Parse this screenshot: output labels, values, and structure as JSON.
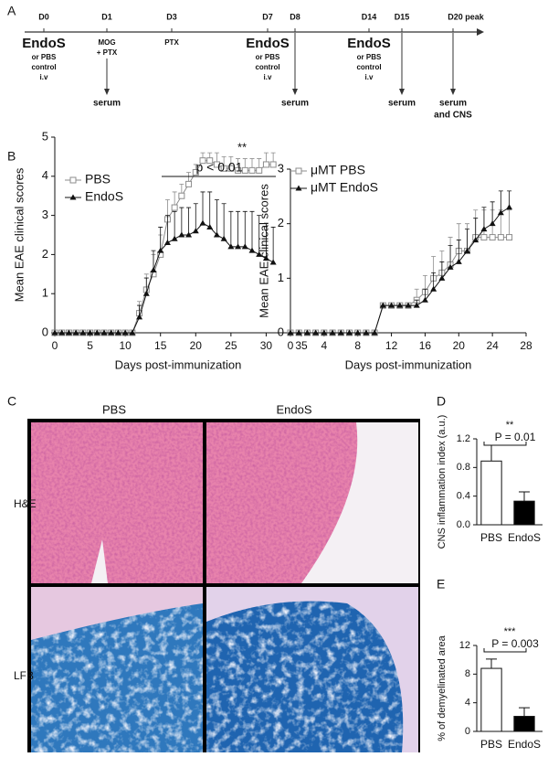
{
  "panel_labels": {
    "a": "A",
    "b": "B",
    "c": "C",
    "d": "D",
    "e": "E"
  },
  "timeline": {
    "events": [
      {
        "day": "D0",
        "treatment": [
          "EndoS",
          "or PBS",
          "control",
          "i.v"
        ],
        "sample": []
      },
      {
        "day": "D1",
        "treatment": [
          "MOG",
          "+ PTX"
        ],
        "sample": [
          "serum"
        ]
      },
      {
        "day": "D3",
        "treatment": [
          "PTX"
        ],
        "sample": []
      },
      {
        "day": "D7",
        "treatment": [
          "EndoS",
          "or PBS",
          "control",
          "i.v"
        ],
        "sample": []
      },
      {
        "day": "D8",
        "treatment": [],
        "sample": [
          "serum"
        ]
      },
      {
        "day": "D14",
        "treatment": [
          "EndoS",
          "or PBS",
          "control",
          "i.v"
        ],
        "sample": []
      },
      {
        "day": "D15",
        "treatment": [],
        "sample": [
          "serum"
        ]
      },
      {
        "day": "D20 peak",
        "treatment": [],
        "sample": [
          "serum",
          "and CNS"
        ]
      }
    ]
  },
  "histology": {
    "columns": [
      "PBS",
      "EndoS"
    ],
    "rows": [
      "H&E",
      "LFB"
    ]
  },
  "chart_data": [
    {
      "type": "line",
      "x_label": "Days post-immunization",
      "y_label": "Mean EAE clinical scores",
      "significance": "**",
      "p_label": "p < 0.01",
      "x": [
        0,
        1,
        2,
        3,
        4,
        5,
        6,
        7,
        8,
        9,
        10,
        11,
        12,
        13,
        14,
        15,
        16,
        17,
        18,
        19,
        20,
        21,
        22,
        23,
        24,
        25,
        26,
        27,
        28,
        29,
        30,
        31
      ],
      "series": [
        {
          "name": "PBS",
          "color": "#8c8c8c",
          "marker": "open-square",
          "values": [
            0,
            0,
            0,
            0,
            0,
            0,
            0,
            0,
            0,
            0,
            0,
            0,
            0.5,
            1.1,
            1.5,
            2.0,
            2.9,
            3.2,
            3.5,
            3.8,
            4.1,
            4.4,
            4.4,
            4.3,
            4.2,
            4.2,
            4.15,
            4.15,
            4.15,
            4.15,
            4.3,
            4.3
          ],
          "errors": [
            0,
            0,
            0,
            0,
            0,
            0,
            0,
            0,
            0,
            0,
            0,
            0,
            0.3,
            0.4,
            0.5,
            0.5,
            0.5,
            0.4,
            0.3,
            0.3,
            0.2,
            0.2,
            0.2,
            0.3,
            0.3,
            0.3,
            0.3,
            0.3,
            0.3,
            0.3,
            0.3,
            0.3
          ]
        },
        {
          "name": "EndoS",
          "color": "#111111",
          "marker": "triangle",
          "values": [
            0,
            0,
            0,
            0,
            0,
            0,
            0,
            0,
            0,
            0,
            0,
            0,
            0.4,
            1.0,
            1.6,
            2.1,
            2.3,
            2.4,
            2.5,
            2.5,
            2.6,
            2.8,
            2.7,
            2.5,
            2.4,
            2.2,
            2.2,
            2.2,
            2.1,
            2.0,
            1.9,
            1.8
          ],
          "errors": [
            0,
            0,
            0,
            0,
            0,
            0,
            0,
            0,
            0,
            0,
            0,
            0,
            0.3,
            0.4,
            0.5,
            0.6,
            0.7,
            0.7,
            0.7,
            0.7,
            0.7,
            0.8,
            0.9,
            0.9,
            0.9,
            0.9,
            0.9,
            0.9,
            1.0,
            1.0,
            0.9,
            0.9
          ]
        }
      ],
      "xlim": [
        0,
        35
      ],
      "xticks": [
        0,
        5,
        10,
        15,
        20,
        25,
        30,
        35
      ],
      "ylim": [
        0,
        5
      ],
      "yticks": [
        0,
        1,
        2,
        3,
        4,
        5
      ]
    },
    {
      "type": "line",
      "x_label": "Days post-immunization",
      "y_label": "Mean EAE clinical scores",
      "x": [
        0,
        1,
        2,
        3,
        4,
        5,
        6,
        7,
        8,
        9,
        10,
        11,
        12,
        13,
        14,
        15,
        16,
        17,
        18,
        19,
        20,
        21,
        22,
        23,
        24,
        25,
        26
      ],
      "series": [
        {
          "name": "μMT PBS",
          "color": "#8c8c8c",
          "marker": "open-square",
          "values": [
            0,
            0,
            0,
            0,
            0,
            0,
            0,
            0,
            0,
            0,
            0,
            0.5,
            0.5,
            0.5,
            0.5,
            0.6,
            0.75,
            1.0,
            1.1,
            1.25,
            1.5,
            1.5,
            1.75,
            1.75,
            1.75,
            1.75,
            1.75
          ],
          "errors": [
            0,
            0,
            0,
            0,
            0,
            0,
            0,
            0,
            0,
            0,
            0,
            0,
            0,
            0,
            0,
            0.2,
            0.3,
            0.4,
            0.4,
            0.5,
            0.5,
            0.5,
            0.5,
            0.5,
            0.5,
            0.5,
            0.5
          ]
        },
        {
          "name": "μMT EndoS",
          "color": "#111111",
          "marker": "triangle",
          "values": [
            0,
            0,
            0,
            0,
            0,
            0,
            0,
            0,
            0,
            0,
            0,
            0.5,
            0.5,
            0.5,
            0.5,
            0.5,
            0.6,
            0.8,
            1.0,
            1.2,
            1.3,
            1.5,
            1.7,
            1.9,
            2.0,
            2.2,
            2.3
          ],
          "errors": [
            0,
            0,
            0,
            0,
            0,
            0,
            0,
            0,
            0,
            0,
            0,
            0,
            0,
            0,
            0,
            0.1,
            0.2,
            0.3,
            0.3,
            0.4,
            0.4,
            0.4,
            0.4,
            0.4,
            0.4,
            0.4,
            0.3
          ]
        }
      ],
      "xlim": [
        0,
        28
      ],
      "xticks": [
        0,
        4,
        8,
        12,
        16,
        20,
        24,
        28
      ],
      "ylim": [
        0,
        3
      ],
      "yticks": [
        0,
        1,
        2,
        3
      ]
    },
    {
      "type": "bar",
      "y_label": "CNS inflammation index (a.u.)",
      "significance": "**",
      "p_label": "P = 0.01",
      "categories": [
        "PBS",
        "EndoS"
      ],
      "values": [
        0.89,
        0.33
      ],
      "errors": [
        0.22,
        0.13
      ],
      "colors": [
        "#ffffff",
        "#000000"
      ],
      "ylim": [
        0,
        1.2
      ],
      "yticks": [
        {
          "value": 0,
          "label": "0.0"
        },
        0.4,
        0.8,
        1.2
      ]
    },
    {
      "type": "bar",
      "y_label": "% of demyelinated area",
      "significance": "***",
      "p_label": "P = 0.003",
      "categories": [
        "PBS",
        "EndoS"
      ],
      "values": [
        8.8,
        2.1
      ],
      "errors": [
        1.3,
        1.2
      ],
      "colors": [
        "#ffffff",
        "#000000"
      ],
      "ylim": [
        0,
        12
      ],
      "yticks": [
        0,
        4,
        8,
        12
      ]
    }
  ]
}
